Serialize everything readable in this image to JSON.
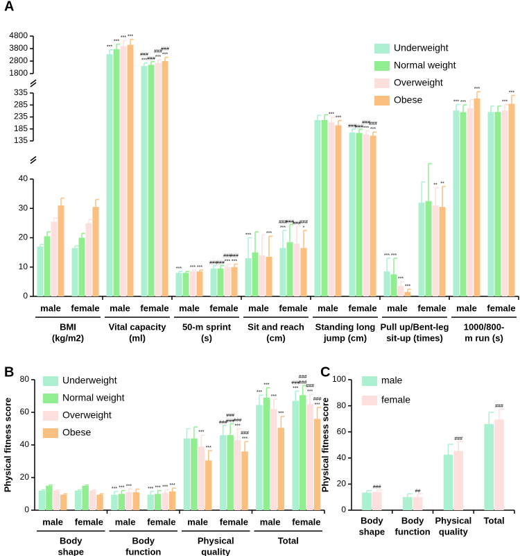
{
  "charts": [
    {
      "type": "bar",
      "panel": "A",
      "categories": [
        [
          "BMI",
          "(kg/m2)"
        ],
        [
          "Vital capacity",
          "(ml)"
        ],
        [
          "50-m sprint",
          "(s)"
        ],
        [
          "Sit and reach",
          "(cm)"
        ],
        [
          "Standing long",
          "jump (cm)"
        ],
        [
          "Pull up/Bent-leg",
          "sit-up (times)"
        ],
        [
          "1000/800-",
          "m run (s)"
        ]
      ],
      "subcategories": [
        "male",
        "female"
      ],
      "segments": [
        {
          "ylim": [
            0,
            40
          ],
          "yticks": [
            0,
            10,
            20,
            30,
            40
          ]
        },
        {
          "ylim": [
            135,
            335
          ],
          "yticks": [
            135,
            185,
            235,
            285,
            335
          ]
        },
        {
          "ylim": [
            1800,
            4800
          ],
          "yticks": [
            1800,
            2800,
            3800,
            4800
          ]
        }
      ],
      "legend": "upper right",
      "series": [
        {
          "name": "Underweight",
          "color": "#aaf0d1",
          "values": [
            17,
            16.5,
            3350,
            2400,
            8,
            9.5,
            13,
            16.5,
            222,
            170,
            8.5,
            32,
            262,
            256
          ],
          "errors": [
            0.7,
            0.7,
            350,
            250,
            0.5,
            1,
            7,
            6,
            20,
            15,
            4.5,
            7,
            25,
            25
          ],
          "labels": [
            null,
            null,
            [
              "***"
            ],
            [
              "###",
              "***"
            ],
            [
              "***"
            ],
            [
              "###"
            ],
            [
              "***"
            ],
            [
              "###",
              "***"
            ],
            null,
            [
              "###"
            ],
            [
              "***"
            ],
            null,
            [
              "***"
            ],
            null
          ]
        },
        {
          "name": "Normal weight",
          "color": "#90ee90",
          "values": [
            20.5,
            20,
            3750,
            2500,
            8,
            9.5,
            15,
            18.5,
            222,
            168,
            7.5,
            32.5,
            255,
            256
          ],
          "errors": [
            1.5,
            1.5,
            400,
            250,
            0.5,
            1,
            7,
            6,
            22,
            15,
            5.5,
            8,
            30,
            25
          ],
          "labels": [
            null,
            null,
            [
              "***"
            ],
            [
              "###"
            ],
            null,
            [
              "###"
            ],
            null,
            [
              "###"
            ],
            null,
            [
              "###"
            ],
            [
              "***"
            ],
            null,
            [
              "***"
            ],
            null
          ]
        },
        {
          "name": "Overweight",
          "color": "#fde0dd",
          "values": [
            25.5,
            25,
            4000,
            2650,
            8.5,
            10,
            14,
            18,
            212,
            162,
            3.5,
            31,
            272,
            262
          ],
          "errors": [
            1.2,
            1.2,
            450,
            250,
            0.5,
            1,
            7,
            6,
            22,
            15,
            1.5,
            6,
            35,
            25
          ],
          "labels": [
            null,
            null,
            [
              "***"
            ],
            [
              "###",
              "***"
            ],
            [
              "***"
            ],
            [
              "###",
              "***"
            ],
            null,
            [
              "###"
            ],
            [
              "***"
            ],
            [
              "###",
              "***"
            ],
            [
              "***"
            ],
            [
              "**"
            ],
            null,
            [
              "***"
            ]
          ]
        },
        {
          "name": "Obese",
          "color": "#fbbf80",
          "values": [
            31,
            30.5,
            4100,
            2800,
            8.5,
            10,
            13.5,
            16.5,
            200,
            157,
            1.5,
            30.5,
            312,
            290
          ],
          "errors": [
            2.5,
            2.5,
            450,
            300,
            0.5,
            1,
            7,
            6,
            20,
            15,
            1,
            7,
            35,
            35
          ],
          "labels": [
            null,
            null,
            [
              "***"
            ],
            [
              "###",
              "***"
            ],
            [
              "***"
            ],
            [
              "###",
              "***"
            ],
            [
              "***"
            ],
            [
              "###",
              "*"
            ],
            [
              "***"
            ],
            [
              "###",
              "***"
            ],
            [
              "***"
            ],
            [
              "**"
            ],
            [
              "***"
            ],
            [
              "***"
            ]
          ]
        }
      ]
    },
    {
      "type": "bar",
      "panel": "B",
      "ylabel": "Physical fitness score",
      "categories": [
        [
          "Body",
          "shape"
        ],
        [
          "Body",
          "function"
        ],
        [
          "Physical",
          "quality"
        ],
        [
          "Total"
        ]
      ],
      "subcategories": [
        "male",
        "female"
      ],
      "ylim": [
        0,
        80
      ],
      "yticks": [
        0,
        20,
        40,
        60,
        80
      ],
      "legend": "upper left",
      "series": [
        {
          "name": "Underweight",
          "color": "#aaf0d1",
          "values": [
            12,
            12,
            9.5,
            9.5,
            44,
            46,
            64.5,
            67
          ],
          "errors": [
            0.5,
            0.5,
            2,
            2,
            6,
            6,
            6,
            6
          ],
          "labels": [
            null,
            null,
            [
              "***"
            ],
            [
              "***"
            ],
            null,
            [
              "###"
            ],
            [
              "***"
            ],
            [
              "###",
              "***"
            ]
          ]
        },
        {
          "name": "Normal weight",
          "color": "#90ee90",
          "values": [
            15,
            15,
            10,
            10,
            44,
            46,
            69,
            70.5
          ],
          "errors": [
            0.5,
            0.5,
            2,
            2,
            7,
            7,
            6,
            6
          ],
          "labels": [
            null,
            null,
            [
              "***"
            ],
            [
              "***"
            ],
            null,
            [
              "###",
              "###"
            ],
            [
              "***"
            ],
            [
              "###",
              "###"
            ]
          ]
        },
        {
          "name": "Overweight",
          "color": "#fde0dd",
          "values": [
            12,
            12,
            11,
            10.5,
            39,
            43,
            62,
            65
          ],
          "errors": [
            0.5,
            0.5,
            2,
            2,
            7,
            7,
            6,
            6
          ],
          "labels": [
            null,
            null,
            [
              "***"
            ],
            [
              "***"
            ],
            [
              "***"
            ],
            [
              "###",
              "***"
            ],
            [
              "***"
            ],
            [
              "###",
              "***"
            ]
          ]
        },
        {
          "name": "Obese",
          "color": "#fbbf80",
          "values": [
            9.5,
            9.5,
            11,
            11.5,
            30.5,
            36,
            50.5,
            56
          ],
          "errors": [
            0.5,
            0.5,
            2,
            2,
            6,
            6,
            7,
            7
          ],
          "labels": [
            null,
            null,
            null,
            [
              "***"
            ],
            [
              "***"
            ],
            [
              "###",
              "***"
            ],
            [
              "***"
            ],
            [
              "###",
              "***"
            ]
          ]
        }
      ]
    },
    {
      "type": "bar",
      "panel": "C",
      "ylabel": "Physical fitness score",
      "categories": [
        [
          "Body",
          "shape"
        ],
        [
          "Body",
          "function"
        ],
        [
          "Physical",
          "quality"
        ],
        [
          "Total"
        ]
      ],
      "ylim": [
        0,
        100
      ],
      "yticks": [
        0,
        20,
        40,
        60,
        80,
        100
      ],
      "legend": "upper left",
      "series": [
        {
          "name": "male",
          "color": "#aaf0d1",
          "values": [
            13.5,
            10,
            42.5,
            66
          ],
          "errors": [
            1.5,
            2.5,
            8,
            9
          ],
          "labels": [
            null,
            null,
            null,
            null
          ]
        },
        {
          "name": "female",
          "color": "#fde0dd",
          "values": [
            14,
            10,
            45.5,
            69.5
          ],
          "errors": [
            1.5,
            2.5,
            7,
            8
          ],
          "labels": [
            [
              "###"
            ],
            [
              "##"
            ],
            [
              "###"
            ],
            [
              "###"
            ]
          ]
        }
      ]
    }
  ]
}
